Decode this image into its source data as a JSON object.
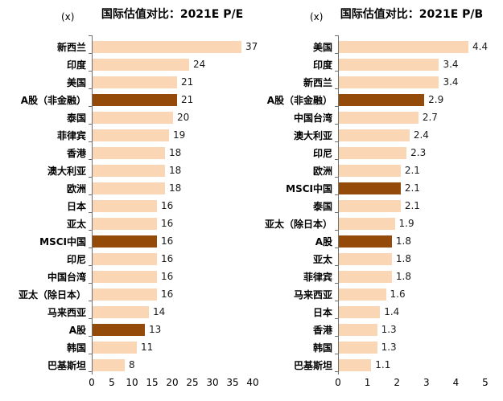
{
  "colors": {
    "background": "#ffffff",
    "axis_line": "#6e6e6e",
    "text": "#000000"
  },
  "chart_data": [
    {
      "type": "bar",
      "orientation": "horizontal",
      "title": "国际估值对比：2021E P/E",
      "unit": "(x)",
      "xlim": [
        0,
        40
      ],
      "x_ticks": [
        "0",
        "5",
        "10",
        "15",
        "20",
        "25",
        "30",
        "35",
        "40"
      ],
      "grid": false,
      "legend": "none",
      "bar_color": "#FAD6B5",
      "highlight_color": "#944A08",
      "highlighted_categories": [
        "A股（非金融）",
        "MSCI中国",
        "A股"
      ],
      "categories": [
        "新西兰",
        "印度",
        "美国",
        "A股（非金融）",
        "泰国",
        "菲律宾",
        "香港",
        "澳大利亚",
        "欧洲",
        "日本",
        "亚太",
        "MSCI中国",
        "印尼",
        "中国台湾",
        "亚太（除日本）",
        "马来西亚",
        "A股",
        "韩国",
        "巴基斯坦"
      ],
      "values": [
        37,
        24,
        21,
        21,
        20,
        19,
        18,
        18,
        18,
        16,
        16,
        16,
        16,
        16,
        16,
        14,
        13,
        11,
        8
      ],
      "value_labels": [
        "37",
        "24",
        "21",
        "21",
        "20",
        "19",
        "18",
        "18",
        "18",
        "16",
        "16",
        "16",
        "16",
        "16",
        "16",
        "14",
        "13",
        "11",
        "8"
      ]
    },
    {
      "type": "bar",
      "orientation": "horizontal",
      "title": "国际估值对比：2021E P/B",
      "unit": "(x)",
      "xlim": [
        0,
        5
      ],
      "x_ticks": [
        "0",
        "1",
        "2",
        "3",
        "4",
        "5"
      ],
      "grid": false,
      "legend": "none",
      "bar_color": "#FAD6B5",
      "highlight_color": "#944A08",
      "highlighted_categories": [
        "A股（非金融）",
        "MSCI中国",
        "A股"
      ],
      "categories": [
        "美国",
        "印度",
        "新西兰",
        "A股（非金融）",
        "中国台湾",
        "澳大利亚",
        "印尼",
        "欧洲",
        "MSCI中国",
        "泰国",
        "亚太（除日本）",
        "A股",
        "亚太",
        "菲律宾",
        "马来西亚",
        "日本",
        "香港",
        "韩国",
        "巴基斯坦"
      ],
      "values": [
        4.4,
        3.4,
        3.4,
        2.9,
        2.7,
        2.4,
        2.3,
        2.1,
        2.1,
        2.1,
        1.9,
        1.8,
        1.8,
        1.8,
        1.6,
        1.4,
        1.3,
        1.3,
        1.1
      ],
      "value_labels": [
        "4.4",
        "3.4",
        "3.4",
        "2.9",
        "2.7",
        "2.4",
        "2.3",
        "2.1",
        "2.1",
        "2.1",
        "1.9",
        "1.8",
        "1.8",
        "1.8",
        "1.6",
        "1.4",
        "1.3",
        "1.3",
        "1.1"
      ]
    }
  ]
}
